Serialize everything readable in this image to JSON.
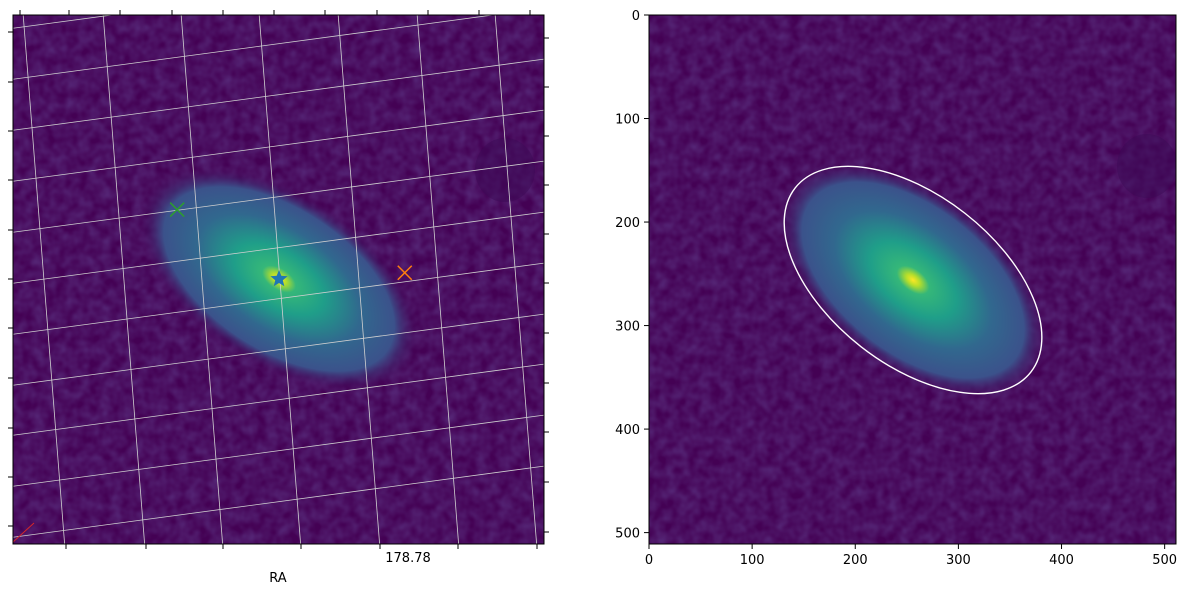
{
  "chart_data": [
    {
      "type": "image",
      "projection": "WCS sky image",
      "xlabel": "RA",
      "ylabel": "",
      "x_tick_labels": [
        "178.78"
      ],
      "grid": true,
      "markers": [
        {
          "kind": "star",
          "color": "#1f77b4",
          "px": [
            256,
            256
          ]
        },
        {
          "kind": "x",
          "color": "#2ca02c",
          "px": [
            158,
            323
          ]
        },
        {
          "kind": "x",
          "color": "#ff7f0e",
          "px": [
            377,
            262
          ]
        }
      ]
    },
    {
      "type": "image",
      "xlabel": "",
      "ylabel": "",
      "xlim": [
        0,
        511
      ],
      "ylim": [
        511,
        0
      ],
      "x_ticks": [
        0,
        100,
        200,
        300,
        400,
        500
      ],
      "y_ticks": [
        0,
        100,
        200,
        300,
        400,
        500
      ],
      "x_tick_labels": [
        "0",
        "100",
        "200",
        "300",
        "400",
        "500"
      ],
      "y_tick_labels": [
        "0",
        "100",
        "200",
        "300",
        "400",
        "500"
      ],
      "ellipse": {
        "center": [
          256,
          256
        ],
        "semi_major": 145,
        "semi_minor": 82,
        "angle_deg": 38,
        "color": "#ffffff"
      },
      "colormap": "viridis"
    }
  ],
  "colors": {
    "background": "#440154",
    "glow_mid": "#31688e",
    "glow_inner": "#35b779",
    "core": "#fde725",
    "grid": "#d0d0d0"
  }
}
